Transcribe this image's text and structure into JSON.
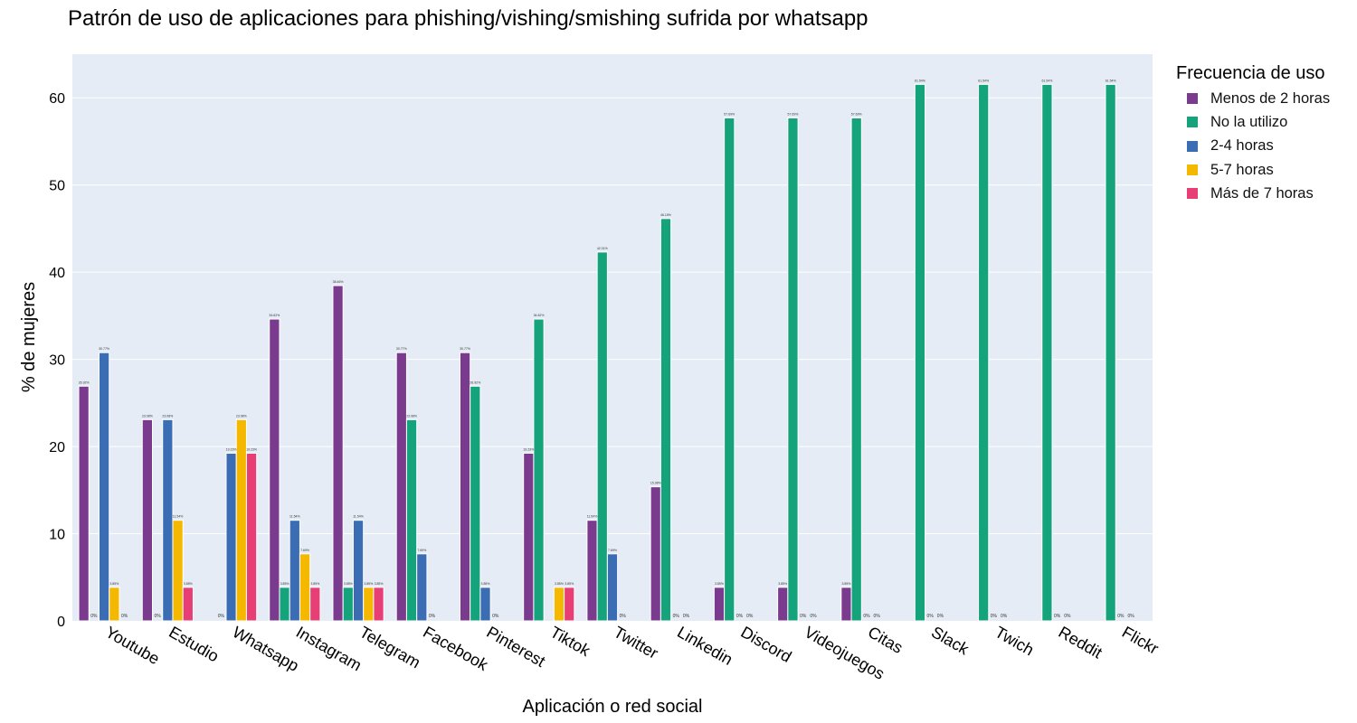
{
  "chart_data": {
    "type": "bar",
    "title": "Patrón de uso de aplicaciones para phishing/vishing/smishing sufrida por whatsapp",
    "xlabel": "Aplicación o red social",
    "ylabel": "% de mujeres",
    "ylim": [
      0,
      65
    ],
    "yticks": [
      0,
      10,
      20,
      30,
      40,
      50,
      60
    ],
    "grid": true,
    "legend_title": "Frecuencia de uso",
    "legend_position": "top-right",
    "categories": [
      "Youtube",
      "Estudio",
      "Whatsapp",
      "Instagram",
      "Telegram",
      "Facebook",
      "Pinterest",
      "Tiktok",
      "Twitter",
      "Linkedin",
      "Discord",
      "Videojuegos",
      "Citas",
      "Slack",
      "Twich",
      "Reddit",
      "Flickr"
    ],
    "series": [
      {
        "name": "Menos de 2 horas",
        "color": "#7a3b8f",
        "values": [
          26.92,
          23.08,
          0,
          34.62,
          38.46,
          30.77,
          30.77,
          19.23,
          11.54,
          15.38,
          3.85,
          3.85,
          3.85,
          0,
          0,
          0,
          0
        ],
        "labels": [
          "26.92%",
          "23.08%",
          "",
          "34.62%",
          "38.46%",
          "30.77%",
          "30.77%",
          "19.23%",
          "11.54%",
          "15.38%",
          "3.85%",
          "3.85%",
          "3.85%",
          "",
          "",
          "",
          ""
        ]
      },
      {
        "name": "No la utilizo",
        "color": "#14a37b",
        "values": [
          0,
          0,
          0,
          3.85,
          3.85,
          23.08,
          26.92,
          34.62,
          42.31,
          46.15,
          57.69,
          57.69,
          57.69,
          61.54,
          61.54,
          61.54,
          61.54
        ],
        "labels": [
          "0%",
          "0%",
          "0%",
          "3.85%",
          "3.85%",
          "23.08%",
          "26.92%",
          "34.62%",
          "42.31%",
          "46.15%",
          "57.69%",
          "57.69%",
          "57.69%",
          "61.54%",
          "61.54%",
          "61.54%",
          "61.54%"
        ]
      },
      {
        "name": "2-4 horas",
        "color": "#3b6db5",
        "values": [
          30.77,
          23.08,
          19.23,
          11.54,
          11.54,
          7.69,
          3.85,
          0,
          7.69,
          0,
          0,
          0,
          0,
          0,
          0,
          0,
          0
        ],
        "labels": [
          "30.77%",
          "23.08%",
          "19.23%",
          "11.54%",
          "11.54%",
          "7.69%",
          "3.85%",
          "",
          "7.69%",
          "0%",
          "0%",
          "0%",
          "0%",
          "0%",
          "0%",
          "0%",
          "0%"
        ]
      },
      {
        "name": "5-7 horas",
        "color": "#f5b800",
        "values": [
          3.85,
          11.54,
          23.08,
          7.69,
          3.85,
          0,
          0,
          3.85,
          0,
          0,
          0,
          0,
          0,
          0,
          0,
          0,
          0
        ],
        "labels": [
          "3.85%",
          "11.54%",
          "23.08%",
          "7.69%",
          "3.85%",
          "0%",
          "0%",
          "3.85%",
          "0%",
          "0%",
          "0%",
          "0%",
          "0%",
          "0%",
          "0%",
          "0%",
          "0%"
        ]
      },
      {
        "name": "Más de 7 horas",
        "color": "#e63e75",
        "values": [
          0,
          3.85,
          19.23,
          3.85,
          3.85,
          0,
          0,
          3.85,
          0,
          0,
          0,
          0,
          0,
          0,
          0,
          0,
          0
        ],
        "labels": [
          "0%",
          "3.85%",
          "19.23%",
          "3.85%",
          "3.85%",
          "",
          "",
          "3.85%",
          "",
          "",
          "",
          "",
          "",
          "",
          "",
          "",
          ""
        ]
      }
    ]
  }
}
